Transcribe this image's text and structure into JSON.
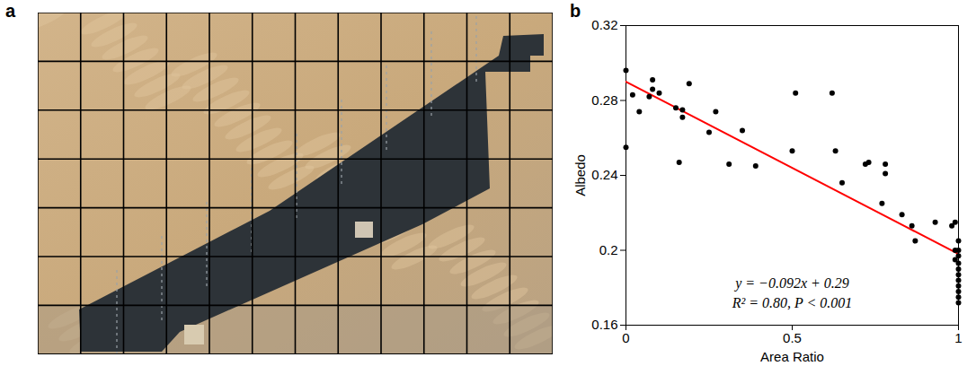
{
  "image_panel": {
    "panel_label": "a"
  },
  "chart_data": {
    "type": "scatter",
    "panel_label": "b",
    "x_label": "Area Ratio",
    "y_label": "Albedo",
    "x": [
      0,
      0,
      0.02,
      0.04,
      0.07,
      0.08,
      0.08,
      0.1,
      0.15,
      0.16,
      0.17,
      0.17,
      0.19,
      0.25,
      0.27,
      0.31,
      0.35,
      0.39,
      0.5,
      0.51,
      0.62,
      0.63,
      0.65,
      0.72,
      0.73,
      0.77,
      0.78,
      0.78,
      0.83,
      0.86,
      0.87,
      0.93,
      0.98,
      0.99,
      0.99,
      0.99,
      1,
      1,
      1,
      1,
      1,
      1,
      1,
      1,
      1,
      1,
      1
    ],
    "values": [
      0.296,
      0.255,
      0.283,
      0.274,
      0.282,
      0.286,
      0.291,
      0.284,
      0.276,
      0.247,
      0.271,
      0.275,
      0.289,
      0.263,
      0.274,
      0.246,
      0.264,
      0.245,
      0.253,
      0.284,
      0.284,
      0.253,
      0.236,
      0.246,
      0.247,
      0.225,
      0.246,
      0.241,
      0.219,
      0.213,
      0.205,
      0.215,
      0.213,
      0.215,
      0.2,
      0.195,
      0.205,
      0.2,
      0.197,
      0.193,
      0.19,
      0.187,
      0.184,
      0.181,
      0.178,
      0.175,
      0.172
    ],
    "color": "#000000",
    "marker": "circle",
    "xlim": [
      0,
      1
    ],
    "xticks": [
      0,
      0.5,
      1
    ],
    "ylim": [
      0.16,
      0.32
    ],
    "yticks": [
      0.16,
      0.2,
      0.24,
      0.28,
      0.32
    ],
    "fit": {
      "slope": -0.092,
      "intercept": 0.29,
      "color": "#ff0000"
    },
    "annotations": [
      "y = −0.092x + 0.29",
      "R² = 0.80, P < 0.001"
    ]
  }
}
